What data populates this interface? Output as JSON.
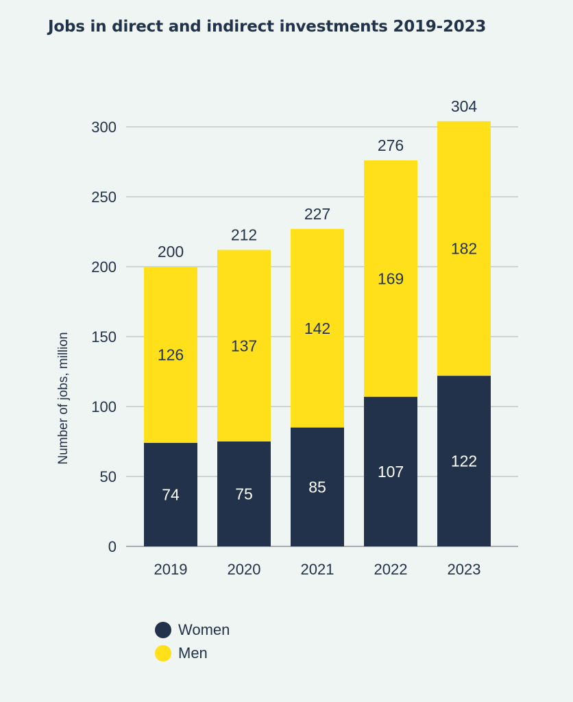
{
  "chart_data": {
    "type": "bar",
    "stacked": true,
    "title": "Jobs in direct and indirect investments 2019-2023",
    "ylabel": "Number of jobs, million",
    "xlabel": "",
    "ylim": [
      0,
      300
    ],
    "yticks": [
      0,
      50,
      100,
      150,
      200,
      250,
      300
    ],
    "grid": true,
    "categories": [
      "2019",
      "2020",
      "2021",
      "2022",
      "2023"
    ],
    "series": [
      {
        "name": "Women",
        "values": [
          74,
          75,
          85,
          107,
          122
        ],
        "color": "#22324a"
      },
      {
        "name": "Men",
        "values": [
          126,
          137,
          142,
          169,
          182
        ],
        "color": "#ffe01b"
      }
    ],
    "totals": [
      200,
      212,
      227,
      276,
      304
    ],
    "legend_position": "bottom-left"
  }
}
